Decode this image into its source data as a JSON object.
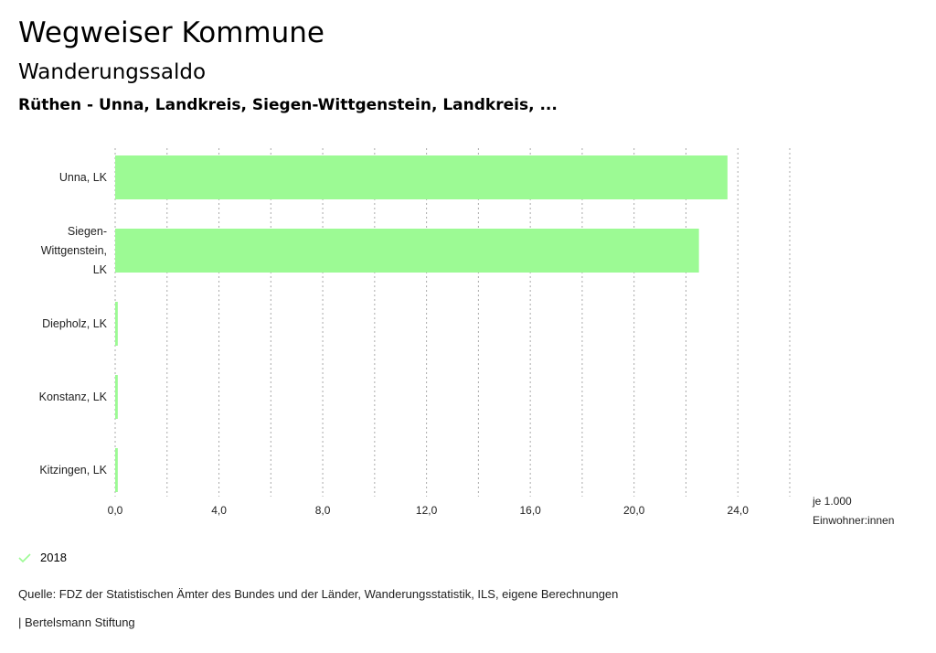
{
  "header": {
    "title": "Wegweiser Kommune",
    "subtitle": "Wanderungssaldo",
    "regions": "Rüthen - Unna, Landkreis, Siegen-Wittgenstein, Landkreis, ..."
  },
  "chart_data": {
    "type": "bar",
    "orientation": "horizontal",
    "categories": [
      "Unna, LK",
      "Siegen-Wittgenstein, LK",
      "Diepholz, LK",
      "Konstanz, LK",
      "Kitzingen, LK"
    ],
    "series": [
      {
        "name": "2018",
        "values": [
          23.6,
          22.5,
          0.1,
          0.1,
          0.1
        ]
      }
    ],
    "xlim": [
      0,
      26
    ],
    "x_ticks": [
      0,
      4,
      8,
      12,
      16,
      20,
      24
    ],
    "x_tick_labels": [
      "0,0",
      "4,0",
      "8,0",
      "12,0",
      "16,0",
      "20,0",
      "24,0"
    ],
    "grid_step": 2,
    "grid": true,
    "xlabel_lines": [
      "je 1.000",
      "Einwohner:innen"
    ],
    "color": "#9cfa94",
    "legend_position": "bottom-left"
  },
  "legend": {
    "label": "2018",
    "icon": "check-icon"
  },
  "footer": {
    "source": "Quelle: FDZ der Statistischen Ämter des Bundes und der Länder, Wanderungsstatistik, ILS, eigene Berechnungen",
    "brand": "| Bertelsmann Stiftung"
  }
}
